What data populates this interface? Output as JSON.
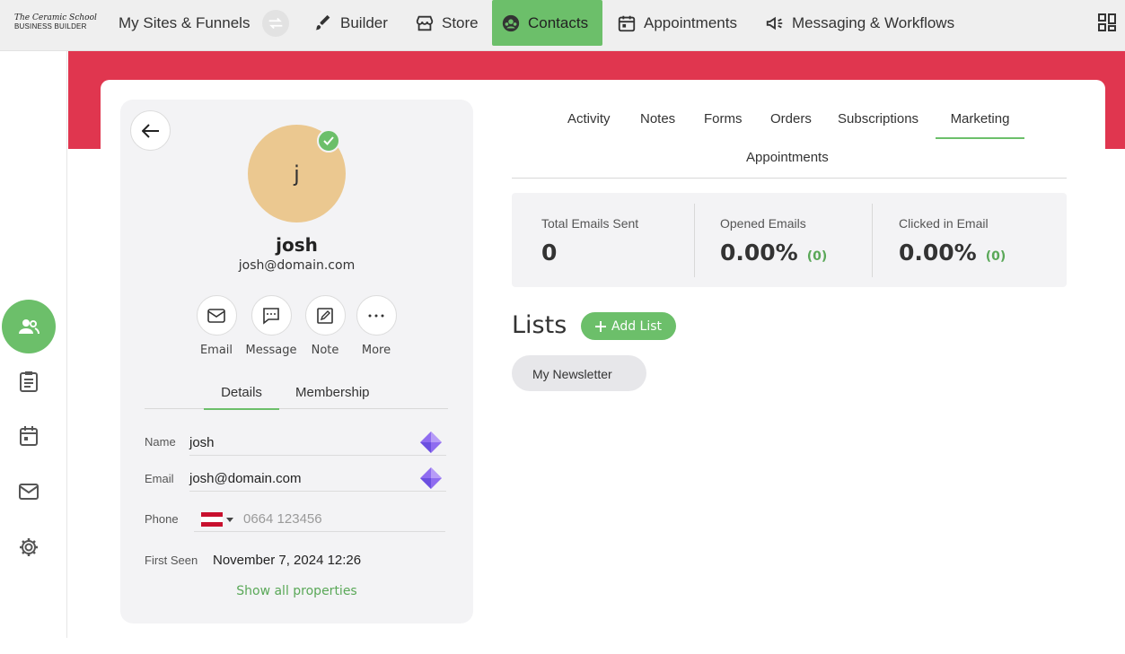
{
  "brand": {
    "line1": "The Ceramic School",
    "line2": "BUSINESS BUILDER"
  },
  "nav": {
    "sites": "My Sites & Funnels",
    "builder": "Builder",
    "store": "Store",
    "contacts": "Contacts",
    "appointments": "Appointments",
    "messaging": "Messaging & Workflows"
  },
  "colors": {
    "accent": "#6cbf6a",
    "banner": "#e0364f",
    "avatar": "#ebc890"
  },
  "profile": {
    "initial": "j",
    "name": "josh",
    "email": "josh@domain.com",
    "actions": [
      {
        "label": "Email",
        "icon": "mail-icon"
      },
      {
        "label": "Message",
        "icon": "chat-icon"
      },
      {
        "label": "Note",
        "icon": "note-icon"
      },
      {
        "label": "More",
        "icon": "more-icon"
      }
    ],
    "tabs": [
      "Details",
      "Membership"
    ],
    "fields": {
      "name_label": "Name",
      "name_value": "josh",
      "email_label": "Email",
      "email_value": "josh@domain.com",
      "phone_label": "Phone",
      "phone_placeholder": "0664 123456",
      "first_seen_label": "First Seen",
      "first_seen_value": "November 7, 2024 12:26"
    },
    "show_all": "Show all properties"
  },
  "tabs": [
    "Activity",
    "Notes",
    "Forms",
    "Orders",
    "Subscriptions",
    "Marketing",
    "Appointments"
  ],
  "stats": {
    "sent_label": "Total Emails Sent",
    "sent_value": "0",
    "opened_label": "Opened Emails",
    "opened_value": "0.00%",
    "opened_count": "(0)",
    "clicked_label": "Clicked in Email",
    "clicked_value": "0.00%",
    "clicked_count": "(0)"
  },
  "lists": {
    "title": "Lists",
    "add_button": "Add List",
    "items": [
      "My Newsletter"
    ]
  }
}
